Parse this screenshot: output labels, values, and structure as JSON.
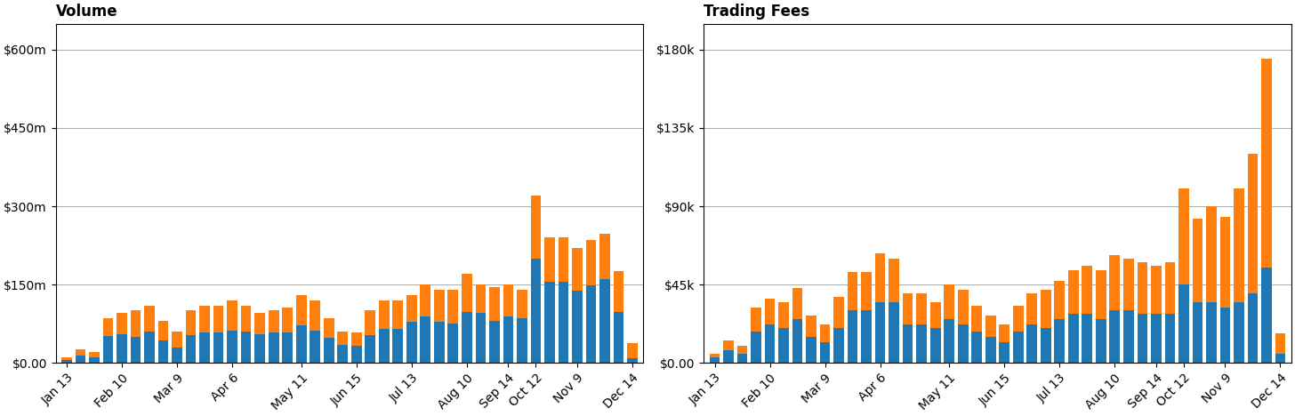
{
  "chart_data": [
    {
      "type": "bar",
      "title": "Volume",
      "stacked": true,
      "grid": true,
      "categories": [
        "Jan 13",
        null,
        null,
        null,
        "Feb 10",
        null,
        null,
        null,
        "Mar 9",
        null,
        null,
        null,
        "Apr 6",
        null,
        null,
        null,
        null,
        "May 11",
        null,
        null,
        null,
        "Jun 15",
        null,
        null,
        null,
        "Jul 13",
        null,
        null,
        null,
        "Aug 10",
        null,
        null,
        "Sep 14",
        null,
        "Oct 12",
        null,
        null,
        "Nov 9",
        null,
        null,
        null,
        "Dec 14"
      ],
      "series": [
        {
          "values": [
            5,
            14,
            10,
            52,
            55,
            50,
            60,
            42,
            30,
            53,
            58,
            58,
            62,
            60,
            55,
            58,
            58,
            72,
            62,
            48,
            34,
            32,
            53,
            65,
            65,
            78,
            88,
            78,
            76,
            98,
            96,
            80,
            88,
            85,
            200,
            155,
            155,
            138,
            148,
            160,
            98,
            8
          ]
        },
        {
          "values": [
            5,
            11,
            10,
            33,
            40,
            50,
            50,
            38,
            30,
            47,
            52,
            52,
            58,
            50,
            40,
            42,
            47,
            58,
            58,
            37,
            26,
            26,
            47,
            55,
            55,
            52,
            62,
            62,
            64,
            72,
            54,
            65,
            62,
            55,
            120,
            85,
            85,
            82,
            87,
            88,
            77,
            30
          ]
        }
      ],
      "ylim": [
        0,
        650
      ],
      "yticks": [
        {
          "value": 0,
          "label": "$0.00"
        },
        {
          "value": 150,
          "label": "$150m"
        },
        {
          "value": 300,
          "label": "$300m"
        },
        {
          "value": 450,
          "label": "$450m"
        },
        {
          "value": 600,
          "label": "$600m"
        }
      ]
    },
    {
      "type": "bar",
      "title": "Trading Fees",
      "stacked": true,
      "grid": true,
      "categories": [
        "Jan 13",
        null,
        null,
        null,
        "Feb 10",
        null,
        null,
        null,
        "Mar 9",
        null,
        null,
        null,
        "Apr 6",
        null,
        null,
        null,
        null,
        "May 11",
        null,
        null,
        null,
        "Jun 15",
        null,
        null,
        null,
        "Jul 13",
        null,
        null,
        null,
        "Aug 10",
        null,
        null,
        "Sep 14",
        null,
        "Oct 12",
        null,
        null,
        "Nov 9",
        null,
        null,
        null,
        "Dec 14"
      ],
      "series": [
        {
          "values": [
            3,
            7,
            5,
            18,
            22,
            20,
            25,
            15,
            12,
            20,
            30,
            30,
            35,
            35,
            22,
            22,
            20,
            25,
            22,
            18,
            15,
            12,
            18,
            22,
            20,
            25,
            28,
            28,
            25,
            30,
            30,
            28,
            28,
            28,
            45,
            35,
            35,
            32,
            35,
            40,
            55,
            5
          ]
        },
        {
          "values": [
            2,
            6,
            5,
            14,
            15,
            15,
            18,
            12,
            10,
            18,
            22,
            22,
            28,
            25,
            18,
            18,
            15,
            20,
            20,
            15,
            12,
            10,
            15,
            18,
            22,
            22,
            25,
            28,
            28,
            32,
            30,
            30,
            28,
            30,
            55,
            48,
            55,
            52,
            65,
            80,
            120,
            12
          ]
        }
      ],
      "ylim": [
        0,
        195
      ],
      "yticks": [
        {
          "value": 0,
          "label": "$0.00"
        },
        {
          "value": 45,
          "label": "$45k"
        },
        {
          "value": 90,
          "label": "$90k"
        },
        {
          "value": 135,
          "label": "$135k"
        },
        {
          "value": 180,
          "label": "$180k"
        }
      ]
    }
  ]
}
